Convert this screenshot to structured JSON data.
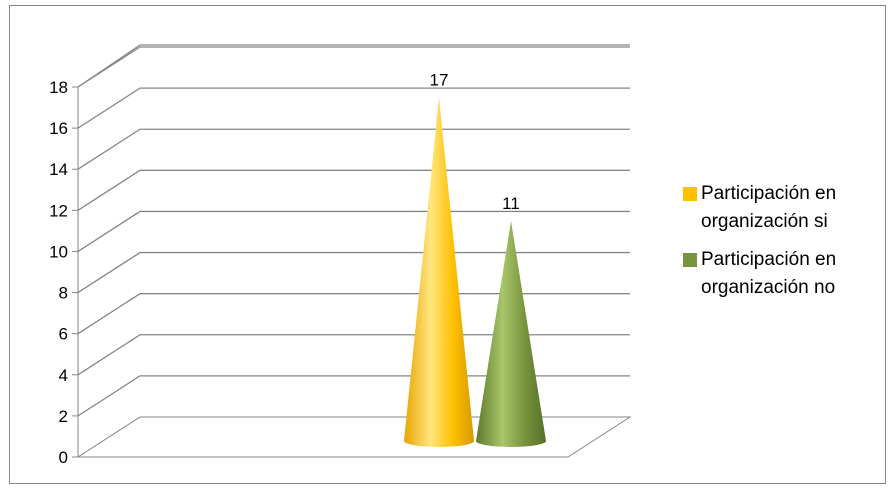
{
  "chart_data": {
    "type": "bar",
    "style": "3d-cone",
    "categories": [
      ""
    ],
    "series": [
      {
        "name": "Participación en organización si",
        "values": [
          17
        ],
        "color": "#FFC000"
      },
      {
        "name": "Participación en organización no",
        "values": [
          11
        ],
        "color": "#77933C"
      }
    ],
    "data_labels": [
      "17",
      "11"
    ],
    "title": "",
    "xlabel": "",
    "ylabel": "",
    "ylim": [
      0,
      18
    ],
    "yticks": [
      "0",
      "2",
      "4",
      "6",
      "8",
      "10",
      "12",
      "14",
      "16",
      "18"
    ],
    "grid": true,
    "legend_position": "right"
  }
}
